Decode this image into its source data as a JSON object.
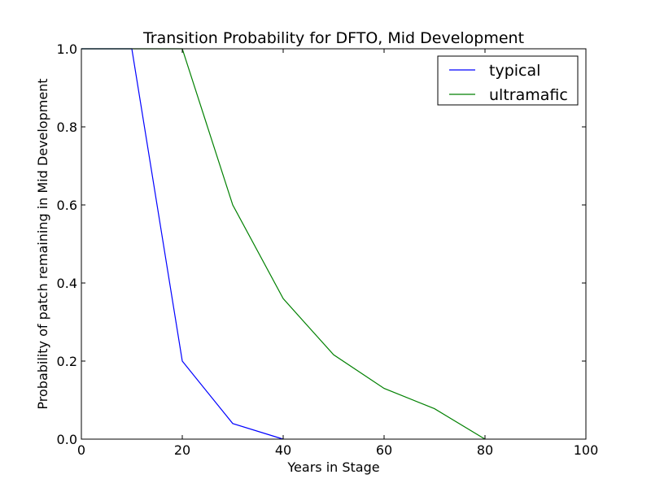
{
  "chart_data": {
    "type": "line",
    "title": "Transition Probability for DFTO, Mid Development",
    "xlabel": "Years in Stage",
    "ylabel": "Probability of patch remaining in Mid Development",
    "xlim": [
      0,
      100
    ],
    "ylim": [
      0.0,
      1.0
    ],
    "x_ticks": [
      0,
      20,
      40,
      60,
      80,
      100
    ],
    "x_tick_labels": [
      "0",
      "20",
      "40",
      "60",
      "80",
      "100"
    ],
    "y_ticks": [
      0.0,
      0.2,
      0.4,
      0.6,
      0.8,
      1.0
    ],
    "y_tick_labels": [
      "0.0",
      "0.2",
      "0.4",
      "0.6",
      "0.8",
      "1.0"
    ],
    "grid": false,
    "legend_position": "top-right",
    "series": [
      {
        "name": "typical",
        "color": "#0000ff",
        "points": [
          [
            0,
            1.0
          ],
          [
            10,
            1.0
          ],
          [
            20,
            0.2
          ],
          [
            30,
            0.04
          ],
          [
            40,
            0.0
          ]
        ]
      },
      {
        "name": "ultramafic",
        "color": "#008000",
        "points": [
          [
            0,
            1.0
          ],
          [
            20,
            1.0
          ],
          [
            30,
            0.6
          ],
          [
            40,
            0.36
          ],
          [
            50,
            0.216
          ],
          [
            60,
            0.13
          ],
          [
            70,
            0.078
          ],
          [
            80,
            0.0
          ]
        ]
      }
    ]
  }
}
